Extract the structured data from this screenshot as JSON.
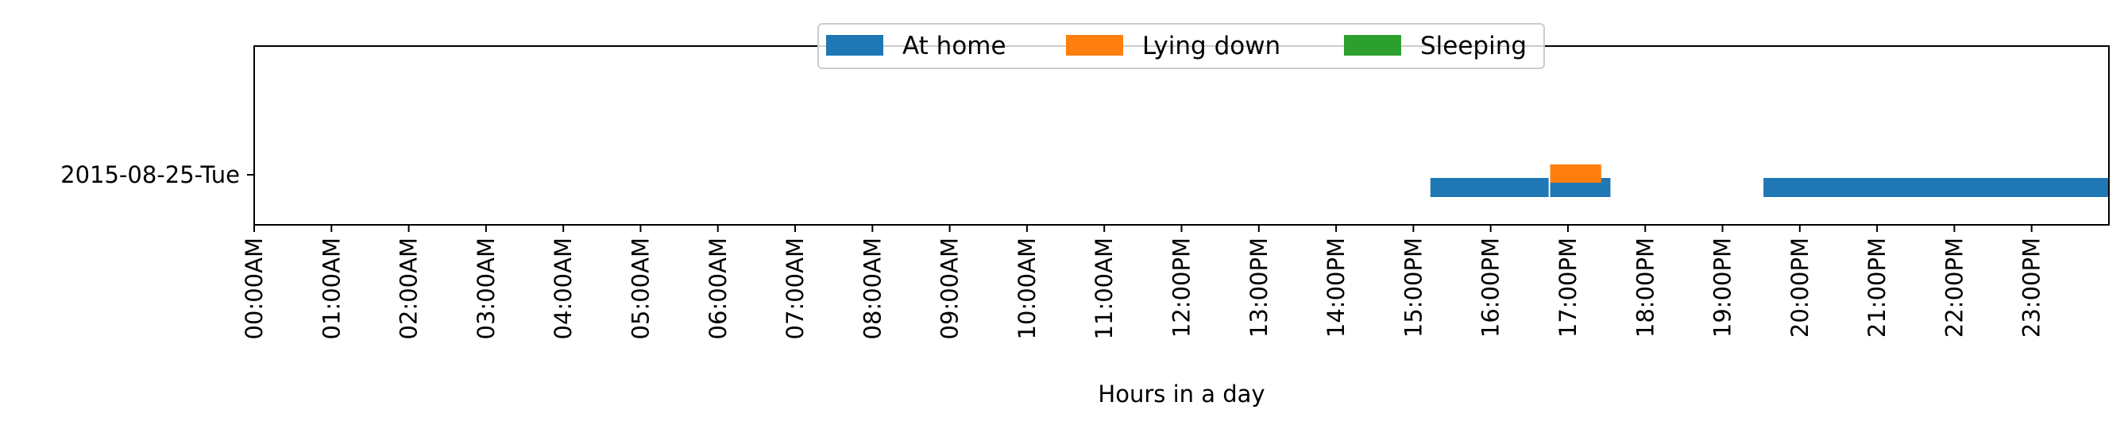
{
  "chart_data": {
    "type": "timeline",
    "xlabel": "Hours in a day",
    "ylabel": "",
    "xlim": [
      0,
      24
    ],
    "x_ticks": [
      "00:00AM",
      "01:00AM",
      "02:00AM",
      "03:00AM",
      "04:00AM",
      "05:00AM",
      "06:00AM",
      "07:00AM",
      "08:00AM",
      "09:00AM",
      "10:00AM",
      "11:00AM",
      "12:00PM",
      "13:00PM",
      "14:00PM",
      "15:00PM",
      "16:00PM",
      "17:00PM",
      "18:00PM",
      "19:00PM",
      "20:00PM",
      "21:00PM",
      "22:00PM",
      "23:00PM"
    ],
    "rows": [
      "2015-08-25-Tue"
    ],
    "legend_position": "top-center",
    "grid": false,
    "series": [
      {
        "name": "At home",
        "color": "#1f77b4",
        "intervals": [
          {
            "row": "2015-08-25-Tue",
            "start": 15.22,
            "end": 16.75
          },
          {
            "row": "2015-08-25-Tue",
            "start": 16.77,
            "end": 17.55
          },
          {
            "row": "2015-08-25-Tue",
            "start": 19.53,
            "end": 24.0
          }
        ]
      },
      {
        "name": "Lying down",
        "color": "#ff7f0e",
        "intervals": [
          {
            "row": "2015-08-25-Tue",
            "start": 16.77,
            "end": 17.43
          }
        ]
      },
      {
        "name": "Sleeping",
        "color": "#2ca02c",
        "intervals": []
      }
    ]
  }
}
